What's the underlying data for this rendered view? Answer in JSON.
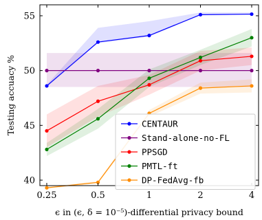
{
  "chart_data": {
    "type": "line",
    "x": [
      0.25,
      0.5,
      1,
      2,
      4
    ],
    "x_tick_labels": [
      "0.25",
      "0.5",
      "1",
      "2",
      "4"
    ],
    "xscale": "log2",
    "xlabel": "ϵ in (ϵ, δ = 10⁻⁵)-differential privacy bound",
    "ylabel": "Testing accuacy %",
    "ylim": [
      39.5,
      56
    ],
    "y_ticks": [
      40,
      45,
      50,
      55
    ],
    "grid": false,
    "legend_position": "bottom-right",
    "series": [
      {
        "name": "CENTAUR",
        "color": "#0000ff",
        "values": [
          48.6,
          52.6,
          53.2,
          55.1,
          55.15
        ],
        "band_lower": [
          48.5,
          52.5,
          53.1,
          55.05,
          55.1
        ],
        "band_upper": [
          48.7,
          53.9,
          54.5,
          55.3,
          55.3
        ]
      },
      {
        "name": "Stand-alone-no-FL",
        "color": "#800080",
        "values": [
          50.0,
          50.0,
          50.0,
          50.0,
          50.0
        ],
        "band_lower": [
          48.5,
          48.5,
          48.5,
          48.5,
          48.5
        ],
        "band_upper": [
          51.6,
          51.6,
          51.6,
          51.6,
          51.6
        ]
      },
      {
        "name": "PPSGD",
        "color": "#ff0000",
        "values": [
          44.5,
          47.2,
          48.7,
          50.9,
          51.3
        ],
        "band_lower": [
          43.0,
          45.8,
          47.8,
          50.0,
          50.5
        ],
        "band_upper": [
          46.0,
          48.6,
          49.6,
          51.8,
          52.1
        ]
      },
      {
        "name": "PMTL-ft",
        "color": "#008000",
        "values": [
          42.8,
          45.6,
          49.3,
          51.2,
          53.0
        ],
        "band_lower": [
          42.2,
          44.7,
          48.5,
          50.5,
          52.2
        ],
        "band_upper": [
          43.4,
          46.5,
          50.1,
          51.9,
          53.8
        ]
      },
      {
        "name": "DP-FedAvg-fb",
        "color": "#ff8c00",
        "values": [
          39.3,
          39.8,
          46.1,
          48.4,
          48.6
        ],
        "band_lower": [
          39.2,
          39.7,
          45.8,
          47.9,
          48.0
        ],
        "band_upper": [
          39.4,
          39.9,
          46.4,
          48.9,
          49.2
        ]
      }
    ]
  }
}
